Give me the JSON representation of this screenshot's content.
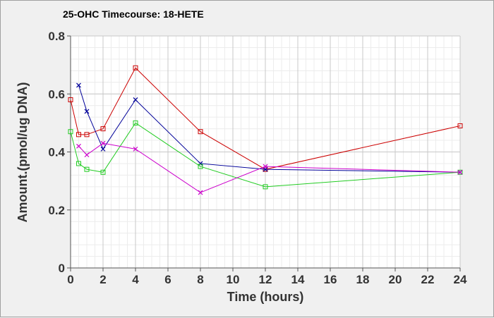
{
  "chart_data": {
    "type": "line",
    "title": "25-OHC Timecourse: 18-HETE",
    "xlabel": "Time (hours)",
    "ylabel": "Amount.(pmol/ug DNA)",
    "xlim": [
      0,
      24
    ],
    "ylim": [
      0,
      0.8
    ],
    "x_ticks": [
      0,
      2,
      4,
      6,
      8,
      10,
      12,
      14,
      16,
      18,
      20,
      22,
      24
    ],
    "y_ticks": [
      0,
      0.2,
      0.4,
      0.6,
      0.8
    ],
    "y_tick_labels": [
      "0",
      "0.2",
      "0.4",
      "0.6",
      "0.8"
    ],
    "grid": true,
    "legend": "none",
    "series": [
      {
        "color": "#cc0000",
        "marker": "square",
        "points": [
          [
            0,
            0.58
          ],
          [
            0.5,
            0.46
          ],
          [
            1,
            0.46
          ],
          [
            2,
            0.48
          ],
          [
            4,
            0.69
          ],
          [
            8,
            0.47
          ],
          [
            12,
            0.34
          ],
          [
            24,
            0.49
          ]
        ]
      },
      {
        "color": "#000099",
        "marker": "x",
        "points": [
          [
            0.5,
            0.63
          ],
          [
            1,
            0.54
          ],
          [
            2,
            0.41
          ],
          [
            4,
            0.58
          ],
          [
            8,
            0.36
          ],
          [
            12,
            0.34
          ],
          [
            24,
            0.33
          ]
        ]
      },
      {
        "color": "#22cc22",
        "marker": "square",
        "points": [
          [
            0,
            0.47
          ],
          [
            0.5,
            0.36
          ],
          [
            1,
            0.34
          ],
          [
            2,
            0.33
          ],
          [
            4,
            0.5
          ],
          [
            8,
            0.35
          ],
          [
            12,
            0.28
          ],
          [
            24,
            0.33
          ]
        ]
      },
      {
        "color": "#cc00cc",
        "marker": "x",
        "points": [
          [
            0.5,
            0.42
          ],
          [
            1,
            0.39
          ],
          [
            2,
            0.43
          ],
          [
            4,
            0.41
          ],
          [
            8,
            0.26
          ],
          [
            12,
            0.35
          ],
          [
            24,
            0.33
          ]
        ]
      }
    ]
  }
}
